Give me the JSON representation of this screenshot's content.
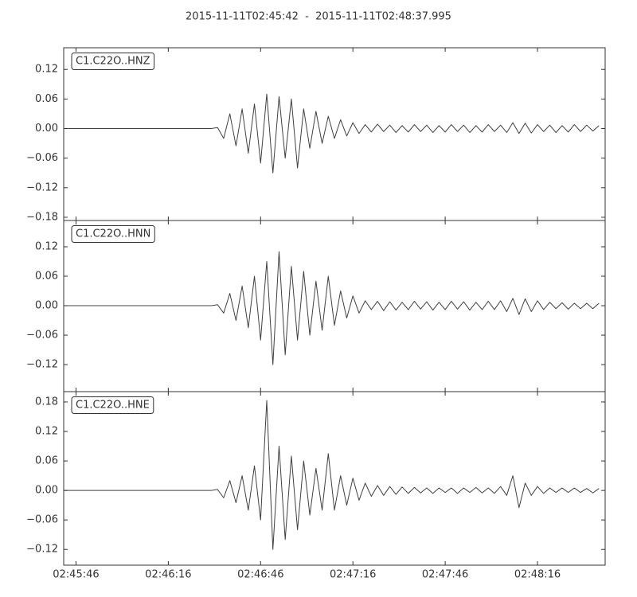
{
  "chart_data": {
    "type": "line",
    "title": "2015-11-11T02:45:42  -  2015-11-11T02:48:37.995",
    "x": [
      9942,
      9944,
      9946,
      9948,
      9950,
      9952,
      9954,
      9956,
      9958,
      9960,
      9962,
      9964,
      9966,
      9968,
      9970,
      9972,
      9974,
      9976,
      9978,
      9980,
      9982,
      9984,
      9986,
      9988,
      9990,
      9992,
      9994,
      9996,
      9998,
      10000,
      10002,
      10004,
      10006,
      10008,
      10010,
      10012,
      10014,
      10016,
      10018,
      10020,
      10022,
      10024,
      10026,
      10028,
      10030,
      10032,
      10034,
      10036,
      10038,
      10040,
      10042,
      10044,
      10046,
      10048,
      10050,
      10052,
      10054,
      10056,
      10058,
      10060,
      10062,
      10064,
      10066,
      10068,
      10070,
      10072,
      10074,
      10076,
      10078,
      10080,
      10082,
      10084,
      10086,
      10088,
      10090,
      10092,
      10094,
      10096,
      10098,
      10100,
      10102,
      10104,
      10106,
      10108,
      10110,
      10112,
      10114,
      10116
    ],
    "xlim": [
      9942,
      10117.995
    ],
    "xticks": [
      {
        "value": 9946,
        "label": "02:45:46"
      },
      {
        "value": 9976,
        "label": "02:46:16"
      },
      {
        "value": 10006,
        "label": "02:46:46"
      },
      {
        "value": 10036,
        "label": "02:47:16"
      },
      {
        "value": 10066,
        "label": "02:47:46"
      },
      {
        "value": 10096,
        "label": "02:48:16"
      }
    ],
    "series": [
      {
        "name": "C1.C22O..HNZ",
        "color": "#404040",
        "ylim": [
          -0.1865,
          0.164
        ],
        "yticks": [
          {
            "value": -0.18,
            "label": "−0.18"
          },
          {
            "value": -0.12,
            "label": "−0.12"
          },
          {
            "value": -0.06,
            "label": "−0.06"
          },
          {
            "value": 0,
            "label": "0.00"
          },
          0.06,
          0.12
        ],
        "values": [
          0,
          0,
          0,
          0,
          0,
          0,
          0,
          0,
          0,
          0,
          0,
          0,
          0,
          0,
          0,
          0,
          0,
          0,
          0,
          0,
          0,
          0,
          0,
          0,
          0,
          0.002,
          -0.02,
          0.03,
          -0.035,
          0.04,
          -0.05,
          0.05,
          -0.07,
          0.07,
          -0.09,
          0.065,
          -0.06,
          0.06,
          -0.08,
          0.04,
          -0.04,
          0.035,
          -0.03,
          0.025,
          -0.02,
          0.018,
          -0.015,
          0.012,
          -0.01,
          0.008,
          -0.007,
          0.009,
          -0.006,
          0.007,
          -0.008,
          0.006,
          -0.007,
          0.008,
          -0.006,
          0.007,
          -0.008,
          0.006,
          -0.007,
          0.008,
          -0.006,
          0.007,
          -0.008,
          0.006,
          -0.007,
          0.008,
          -0.006,
          0.007,
          -0.008,
          0.012,
          -0.01,
          0.011,
          -0.009,
          0.008,
          -0.006,
          0.007,
          -0.008,
          0.006,
          -0.007,
          0.008,
          -0.006,
          0.007,
          -0.005,
          0.006
        ]
      },
      {
        "name": "C1.C22O..HNN",
        "color": "#404040",
        "ylim": [
          -0.175,
          0.1735
        ],
        "yticks": [
          {
            "value": -0.12,
            "label": "−0.12"
          },
          {
            "value": -0.06,
            "label": "−0.06"
          },
          {
            "value": 0,
            "label": "0.00"
          },
          0.06,
          0.12
        ],
        "values": [
          0,
          0,
          0,
          0,
          0,
          0,
          0,
          0,
          0,
          0,
          0,
          0,
          0,
          0,
          0,
          0,
          0,
          0,
          0,
          0,
          0,
          0,
          0,
          0,
          0,
          0.002,
          -0.015,
          0.025,
          -0.03,
          0.04,
          -0.045,
          0.06,
          -0.07,
          0.09,
          -0.12,
          0.11,
          -0.1,
          0.08,
          -0.07,
          0.07,
          -0.06,
          0.05,
          -0.05,
          0.06,
          -0.04,
          0.03,
          -0.025,
          0.02,
          -0.015,
          0.01,
          -0.008,
          0.009,
          -0.01,
          0.008,
          -0.009,
          0.007,
          -0.008,
          0.009,
          -0.007,
          0.008,
          -0.009,
          0.007,
          -0.008,
          0.009,
          -0.007,
          0.008,
          -0.009,
          0.007,
          -0.008,
          0.009,
          -0.008,
          0.01,
          -0.012,
          0.015,
          -0.018,
          0.014,
          -0.012,
          0.01,
          -0.008,
          0.007,
          -0.006,
          0.006,
          -0.007,
          0.005,
          -0.006,
          0.005,
          -0.006,
          0.005
        ]
      },
      {
        "name": "C1.C22O..HNE",
        "color": "#404040",
        "ylim": [
          -0.152,
          0.201
        ],
        "yticks": [
          {
            "value": -0.12,
            "label": "−0.12"
          },
          {
            "value": -0.06,
            "label": "−0.06"
          },
          {
            "value": 0,
            "label": "0.00"
          },
          0.06,
          0.12,
          0.18
        ],
        "values": [
          0,
          0,
          0,
          0,
          0,
          0,
          0,
          0,
          0,
          0,
          0,
          0,
          0,
          0,
          0,
          0,
          0,
          0,
          0,
          0,
          0,
          0,
          0,
          0,
          0,
          0.002,
          -0.015,
          0.02,
          -0.025,
          0.03,
          -0.04,
          0.05,
          -0.06,
          0.183,
          -0.12,
          0.09,
          -0.1,
          0.07,
          -0.08,
          0.06,
          -0.05,
          0.045,
          -0.04,
          0.075,
          -0.04,
          0.03,
          -0.03,
          0.025,
          -0.02,
          0.015,
          -0.012,
          0.01,
          -0.01,
          0.008,
          -0.008,
          0.007,
          -0.006,
          0.006,
          -0.005,
          0.005,
          -0.006,
          0.005,
          -0.004,
          0.005,
          -0.006,
          0.005,
          -0.004,
          0.006,
          -0.005,
          0.005,
          -0.006,
          0.008,
          -0.01,
          0.03,
          -0.035,
          0.015,
          -0.01,
          0.008,
          -0.006,
          0.005,
          -0.004,
          0.005,
          -0.004,
          0.005,
          -0.004,
          0.004,
          -0.005,
          0.004
        ]
      }
    ]
  }
}
